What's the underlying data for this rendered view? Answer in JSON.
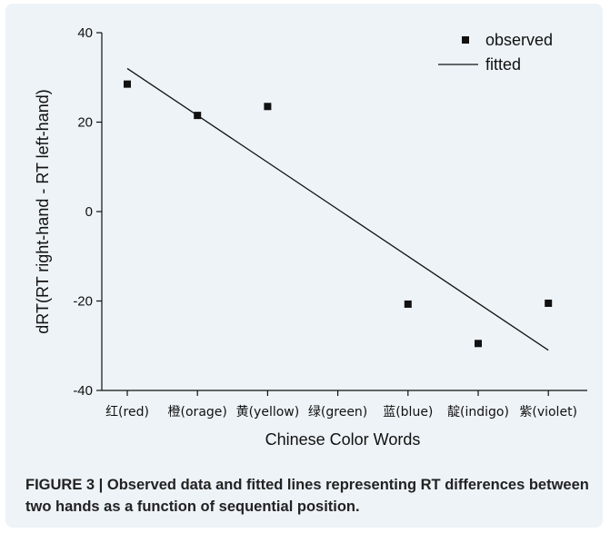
{
  "chart_data": {
    "type": "scatter",
    "categories": [
      "红(red)",
      "橙(orage)",
      "黄(yellow)",
      "绿(green)",
      "蓝(blue)",
      "靛(indigo)",
      "紫(violet)"
    ],
    "xlabel": "Chinese Color Words",
    "ylabel": "dRT(RT right-hand - RT left-hand)",
    "ylim": [
      -40,
      40
    ],
    "yticks": [
      "40",
      "20",
      "0",
      "-20",
      "-40"
    ],
    "series": [
      {
        "name": "observed",
        "kind": "points",
        "values": [
          28.5,
          21.5,
          23.5,
          null,
          -20.7,
          -29.5,
          -20.5
        ]
      },
      {
        "name": "fitted",
        "kind": "line",
        "start": [
          1,
          32
        ],
        "end": [
          7,
          -31
        ]
      }
    ],
    "legend_position": "top-right",
    "grid": false
  },
  "caption": "FIGURE 3 | Observed data and fitted lines representing RT differences between two hands as a function of sequential position."
}
